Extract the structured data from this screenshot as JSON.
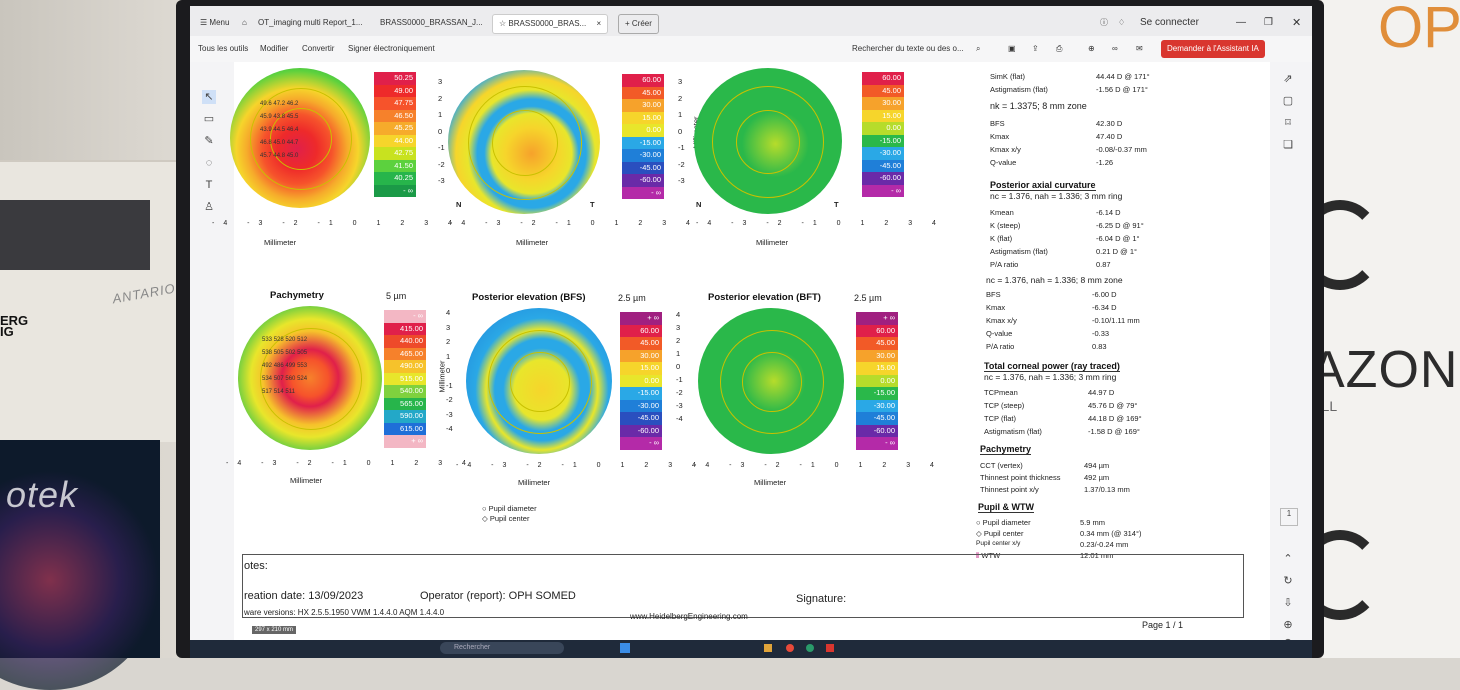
{
  "browser": {
    "tabs": [
      "Menu",
      "OT_imaging multi Report_1...",
      "BRASS0000_BRASSAN_J...",
      "BRASS0000_BRAS...",
      "+ Créer"
    ],
    "sign_in": "Se connecter"
  },
  "toolbar": {
    "items": [
      "Tous les outils",
      "Modifier",
      "Convertir",
      "Signer électroniquement"
    ],
    "search": "Rechercher du texte ou des o...",
    "ai_button": "Demander à l'Assistant IA"
  },
  "maps_top": [
    {
      "scale": [
        "50.25",
        "49.00",
        "47.75",
        "46.50",
        "45.25",
        "44.00",
        "42.75",
        "41.50",
        "40.25",
        "- ∞"
      ],
      "colors": [
        "#e0204a",
        "#ee2a2a",
        "#f6532b",
        "#f6812b",
        "#f6ab2b",
        "#f6d52b",
        "#c8e21f",
        "#5cd13e",
        "#27b54b",
        "#1b9a47"
      ],
      "ylabels": [
        "3",
        "2",
        "1",
        "0",
        "-1",
        "-2",
        "-3"
      ]
    },
    {
      "scale": [
        "60.00",
        "45.00",
        "30.00",
        "15.00",
        "0.00",
        "-15.00",
        "-30.00",
        "-45.00",
        "-60.00",
        "- ∞"
      ],
      "colors": [
        "#e0204a",
        "#f25a27",
        "#f6a22b",
        "#f6d52b",
        "#e8e62b",
        "#2aa8e6",
        "#1f7fd8",
        "#2a4fbf",
        "#6a2aa8",
        "#b42aa8"
      ],
      "ylabels": [
        "3",
        "2",
        "1",
        "0",
        "-1",
        "-2",
        "-3"
      ]
    },
    {
      "scale": [
        "60.00",
        "45.00",
        "30.00",
        "15.00",
        "0.00",
        "-15.00",
        "-30.00",
        "-45.00",
        "-60.00",
        "- ∞"
      ],
      "colors": [
        "#e0204a",
        "#f25a27",
        "#f6a22b",
        "#f6d52b",
        "#b6dc2b",
        "#2ab84a",
        "#2aa8e6",
        "#1f7fd8",
        "#6a2aa8",
        "#b42aa8"
      ],
      "ylabels": [
        "3",
        "2",
        "1",
        "0",
        "-1",
        "-2",
        "-3"
      ]
    }
  ],
  "maps_bottom": [
    {
      "title": "Pachymetry",
      "step": "5 µm",
      "scale": [
        "- ∞",
        "415.00",
        "440.00",
        "465.00",
        "490.00",
        "515.00",
        "540.00",
        "565.00",
        "590.00",
        "615.00",
        "+ ∞"
      ],
      "colors": [
        "#f3b7c4",
        "#e0204a",
        "#ee4a2a",
        "#f6812b",
        "#f6c22b",
        "#e8e62b",
        "#7fd13e",
        "#27b54b",
        "#23a8c8",
        "#1f6fd8",
        "#f3b7c4"
      ],
      "ylabels": [
        "4",
        "3",
        "2",
        "1",
        "0",
        "-1",
        "-2",
        "-3",
        "-4"
      ]
    },
    {
      "title": "Posterior elevation (BFS)",
      "step": "2.5 µm",
      "scale": [
        "+ ∞",
        "60.00",
        "45.00",
        "30.00",
        "15.00",
        "0.00",
        "-15.00",
        "-30.00",
        "-45.00",
        "-60.00",
        "- ∞"
      ],
      "colors": [
        "#a02080",
        "#e0204a",
        "#f25a27",
        "#f6a22b",
        "#f6d52b",
        "#e8e62b",
        "#2aa8e6",
        "#1f7fd8",
        "#2a4fbf",
        "#6a2aa8",
        "#b42aa8"
      ],
      "ylabels": [
        "4",
        "3",
        "2",
        "1",
        "0",
        "-1",
        "-2",
        "-3",
        "-4"
      ]
    },
    {
      "title": "Posterior elevation (BFT)",
      "step": "2.5 µm",
      "scale": [
        "+ ∞",
        "60.00",
        "45.00",
        "30.00",
        "15.00",
        "0.00",
        "-15.00",
        "-30.00",
        "-45.00",
        "-60.00",
        "- ∞"
      ],
      "colors": [
        "#a02080",
        "#e0204a",
        "#f25a27",
        "#f6a22b",
        "#f6d52b",
        "#b6dc2b",
        "#2ab84a",
        "#2aa8e6",
        "#1f7fd8",
        "#6a2aa8",
        "#b42aa8"
      ],
      "ylabels": [
        "4",
        "3",
        "2",
        "1",
        "0",
        "-1",
        "-2",
        "-3",
        "-4"
      ]
    }
  ],
  "axis_labels": {
    "x_top": "-4 -3 -2 -1 0 1 2 3 4",
    "x_unit": "Millimeter",
    "y_unit": "Millimeter",
    "nasal": "N",
    "temporal": "T"
  },
  "map_values": {
    "axial": [
      "49.6",
      "47.2",
      "46.2",
      "45.9",
      "43.8",
      "45.5",
      "43.9",
      "44.5",
      "46.4",
      "46.8",
      "45.0",
      "44.7",
      "45.7",
      "44.8",
      "45.0"
    ],
    "pachy": [
      "533",
      "528",
      "520",
      "512",
      "538",
      "505",
      "502",
      "505",
      "492",
      "486",
      "499",
      "553",
      "534",
      "507",
      "560",
      "524",
      "517",
      "514",
      "511"
    ]
  },
  "legend": {
    "pupil_diameter": "Pupil diameter",
    "pupil_center": "Pupil center"
  },
  "panel": {
    "simk_flat_l": "SimK (flat)",
    "simk_flat_v": "44.44 D @ 171°",
    "astig_flat_l": "Astigmatism (flat)",
    "astig_flat_v": "-1.56 D @ 171°",
    "nk_line": "nk = 1.3375; 8 mm zone",
    "bfs_l": "BFS",
    "bfs_v": "42.30 D",
    "kmax_l": "Kmax",
    "kmax_v": "47.40 D",
    "kmaxxy_l": "Kmax x/y",
    "kmaxxy_v": "-0.08/-0.37 mm",
    "q_l": "Q-value",
    "q_v": "-1.26",
    "post_head": "Posterior axial curvature",
    "post_sub": "nc = 1.376, nah = 1.336; 3 mm ring",
    "pkmean_l": "Kmean",
    "pkmean_v": "-6.14 D",
    "pksteep_l": "K (steep)",
    "pksteep_v": "-6.25 D @ 91°",
    "pkflat_l": "K (flat)",
    "pkflat_v": "-6.04 D @ 1°",
    "pastig_l": "Astigmatism (flat)",
    "pastig_v": "0.21 D @ 1°",
    "pa_l": "P/A ratio",
    "pa_v": "0.87",
    "post_sub2": "nc = 1.376, nah = 1.336; 8 mm zone",
    "pbfs_l": "BFS",
    "pbfs_v": "-6.00 D",
    "pkmax_l": "Kmax",
    "pkmax_v": "-6.34 D",
    "pkmaxxy_l": "Kmax x/y",
    "pkmaxxy_v": "-0.10/1.11 mm",
    "pq_l": "Q-value",
    "pq_v": "-0.33",
    "pa2_l": "P/A ratio",
    "pa2_v": "0.83",
    "tcp_head": "Total corneal power (ray traced)",
    "tcp_sub": "nc = 1.376, nah = 1.336; 3 mm ring",
    "tcpmean_l": "TCPmean",
    "tcpmean_v": "44.97 D",
    "tcpsteep_l": "TCP (steep)",
    "tcpsteep_v": "45.76 D @ 79°",
    "tcpflat_l": "TCP (flat)",
    "tcpflat_v": "44.18 D @ 169°",
    "tastig_l": "Astigmatism (flat)",
    "tastig_v": "-1.58 D @ 169°",
    "pachy_head": "Pachymetry",
    "cct_l": "CCT (vertex)",
    "cct_v": "494 µm",
    "thin_l": "Thinnest point thickness",
    "thin_v": "492 µm",
    "thinxy_l": "Thinnest point x/y",
    "thinxy_v": "1.37/0.13 mm",
    "pupil_head": "Pupil & WTW",
    "pdiam_l": "Pupil diameter",
    "pdiam_v": "5.9 mm",
    "pcent_l": "Pupil center",
    "pcent_v": "0.34 mm (@ 314°)",
    "pcxy_l": "Pupil center x/y",
    "pcxy_v": "0.23/-0.24 mm",
    "wtw_l": "WTW",
    "wtw_v": "12.01 mm"
  },
  "footer": {
    "notes": "otes:",
    "creation": "reation date: 13/09/2023",
    "operator": "Operator (report): OPH SOMED",
    "signature": "Signature:",
    "versions": "ware versions:  HX 2.5.5.1950 VWM 1.4.4.0  AQM 1.4.4.0",
    "website": "www.HeidelbergEngineering.com",
    "page": "Page  1 / 1",
    "size": "297 x 210 mm"
  },
  "environment": {
    "device_label": "ANTARION",
    "device_badge": "ERG\nIG",
    "tablet_brand": "otek",
    "banner_top": "OP",
    "banner_mid": "AZON",
    "banner_sub": "Y ALL",
    "taskbar_search": "Rechercher"
  }
}
